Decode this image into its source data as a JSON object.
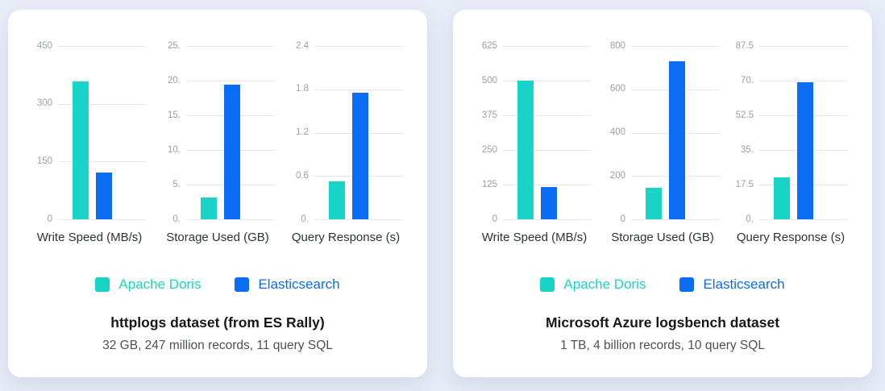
{
  "colors": {
    "doris": "#18d4c7",
    "elasticsearch": "#0b6cf4",
    "page_background": "#e8ecf7",
    "card_background": "#ffffff",
    "gridline": "#e4e7ee",
    "tick_text": "#9aa0a8"
  },
  "chart_data": [
    {
      "type": "bar",
      "group_title": "httplogs dataset (from ES Rally)",
      "group_subtitle": "32 GB, 247 million records, 11 query SQL",
      "legend": [
        "Apache Doris",
        "Elasticsearch"
      ],
      "legend_position": "bottom",
      "grid": true,
      "charts": [
        {
          "title": "Write Speed (MB/s)",
          "ylim": [
            0,
            450
          ],
          "yticks": [
            "450",
            "300",
            "150",
            "0"
          ],
          "series": [
            {
              "name": "Apache Doris",
              "value": 357
            },
            {
              "name": "Elasticsearch",
              "value": 122
            }
          ]
        },
        {
          "title": "Storage Used (GB)",
          "ylim": [
            0,
            25
          ],
          "yticks": [
            "25.",
            "20.",
            "15.",
            "10.",
            "5.",
            "0."
          ],
          "series": [
            {
              "name": "Apache Doris",
              "value": 3.1
            },
            {
              "name": "Elasticsearch",
              "value": 19.4
            }
          ]
        },
        {
          "title": "Query Response (s)",
          "ylim": [
            0,
            2.4
          ],
          "yticks": [
            "2.4",
            "1.8",
            "1.2",
            "0.6",
            "0."
          ],
          "series": [
            {
              "name": "Apache Doris",
              "value": 0.52
            },
            {
              "name": "Elasticsearch",
              "value": 1.75
            }
          ]
        }
      ]
    },
    {
      "type": "bar",
      "group_title": "Microsoft Azure logsbench dataset",
      "group_subtitle": "1 TB, 4 billion records, 10 query SQL",
      "legend": [
        "Apache Doris",
        "Elasticsearch"
      ],
      "legend_position": "bottom",
      "grid": true,
      "charts": [
        {
          "title": "Write Speed (MB/s)",
          "ylim": [
            0,
            625
          ],
          "yticks": [
            "625",
            "500",
            "375",
            "250",
            "125",
            "0"
          ],
          "series": [
            {
              "name": "Apache Doris",
              "value": 500
            },
            {
              "name": "Elasticsearch",
              "value": 115
            }
          ]
        },
        {
          "title": "Storage Used (GB)",
          "ylim": [
            0,
            800
          ],
          "yticks": [
            "800",
            "600",
            "400",
            "200",
            "0"
          ],
          "series": [
            {
              "name": "Apache Doris",
              "value": 145
            },
            {
              "name": "Elasticsearch",
              "value": 730
            }
          ]
        },
        {
          "title": "Query Response (s)",
          "ylim": [
            0,
            87.5
          ],
          "yticks": [
            "87.5",
            "70.",
            "52.5",
            "35.",
            "17.5",
            "0."
          ],
          "series": [
            {
              "name": "Apache Doris",
              "value": 21
            },
            {
              "name": "Elasticsearch",
              "value": 69
            }
          ]
        }
      ]
    }
  ]
}
